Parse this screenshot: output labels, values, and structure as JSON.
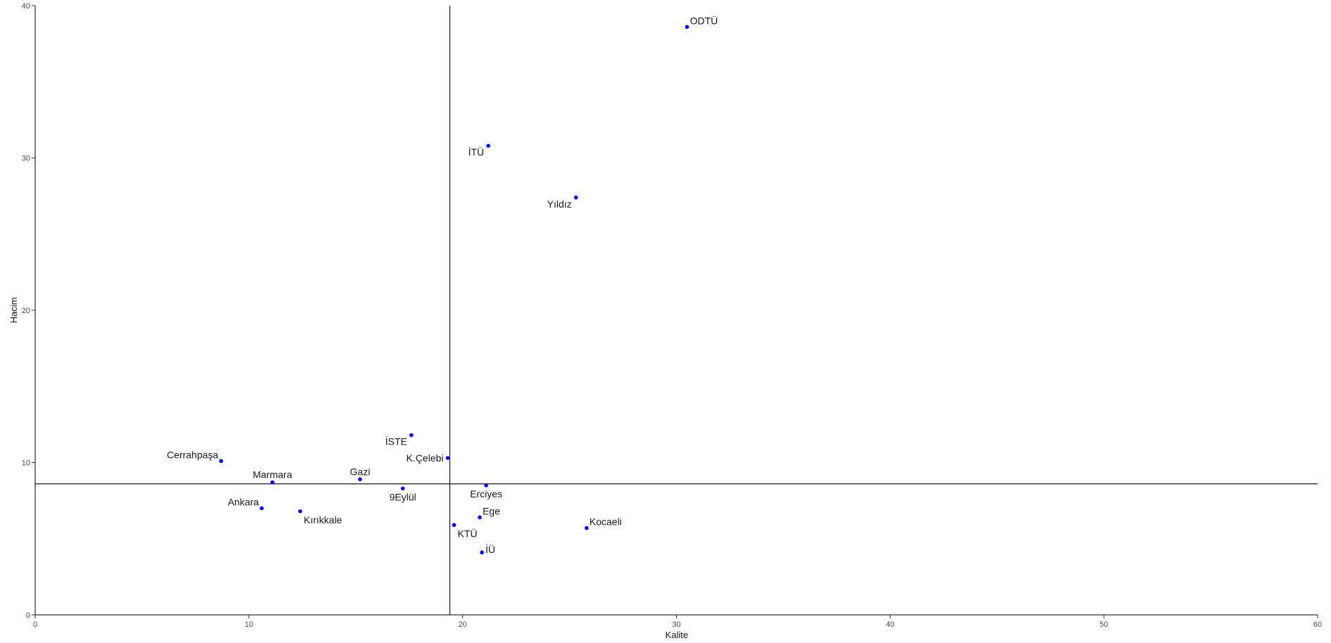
{
  "chart_data": {
    "type": "scatter",
    "xlabel": "Kalite",
    "ylabel": "Hacim",
    "xlim": [
      0,
      60
    ],
    "ylim": [
      0,
      40
    ],
    "x_ticks": [
      0,
      10,
      20,
      30,
      40,
      50,
      60
    ],
    "y_ticks": [
      0,
      10,
      20,
      30,
      40
    ],
    "grid": false,
    "point_color": "#0000ff",
    "reference_lines": {
      "vertical_x": 19.4,
      "horizontal_y": 8.6
    },
    "points": [
      {
        "label": "ODTÜ",
        "x": 30.5,
        "y": 38.6,
        "label_pos": "top-right"
      },
      {
        "label": "İTÜ",
        "x": 21.2,
        "y": 30.8,
        "label_pos": "bottom-left"
      },
      {
        "label": "Yıldız",
        "x": 25.3,
        "y": 27.4,
        "label_pos": "bottom-left"
      },
      {
        "label": "İSTE",
        "x": 17.6,
        "y": 11.8,
        "label_pos": "bottom-left"
      },
      {
        "label": "K.Çelebi",
        "x": 19.3,
        "y": 10.3,
        "label_pos": "left"
      },
      {
        "label": "Cerrahpaşa",
        "x": 8.7,
        "y": 10.1,
        "label_pos": "top-left"
      },
      {
        "label": "Marmara",
        "x": 11.1,
        "y": 8.7,
        "label_pos": "top"
      },
      {
        "label": "Gazi",
        "x": 15.2,
        "y": 8.9,
        "label_pos": "top"
      },
      {
        "label": "9Eylül",
        "x": 17.2,
        "y": 8.3,
        "label_pos": "bottom"
      },
      {
        "label": "Erciyes",
        "x": 21.1,
        "y": 8.5,
        "label_pos": "bottom"
      },
      {
        "label": "Ankara",
        "x": 10.6,
        "y": 7.0,
        "label_pos": "top-left"
      },
      {
        "label": "Kırıkkale",
        "x": 12.4,
        "y": 6.8,
        "label_pos": "bottom-right"
      },
      {
        "label": "Ege",
        "x": 20.8,
        "y": 6.4,
        "label_pos": "top-right"
      },
      {
        "label": "KTÜ",
        "x": 19.6,
        "y": 5.9,
        "label_pos": "bottom-right"
      },
      {
        "label": "Kocaeli",
        "x": 25.8,
        "y": 5.7,
        "label_pos": "top-right"
      },
      {
        "label": "İÜ",
        "x": 20.9,
        "y": 4.1,
        "label_pos": "right"
      }
    ]
  }
}
